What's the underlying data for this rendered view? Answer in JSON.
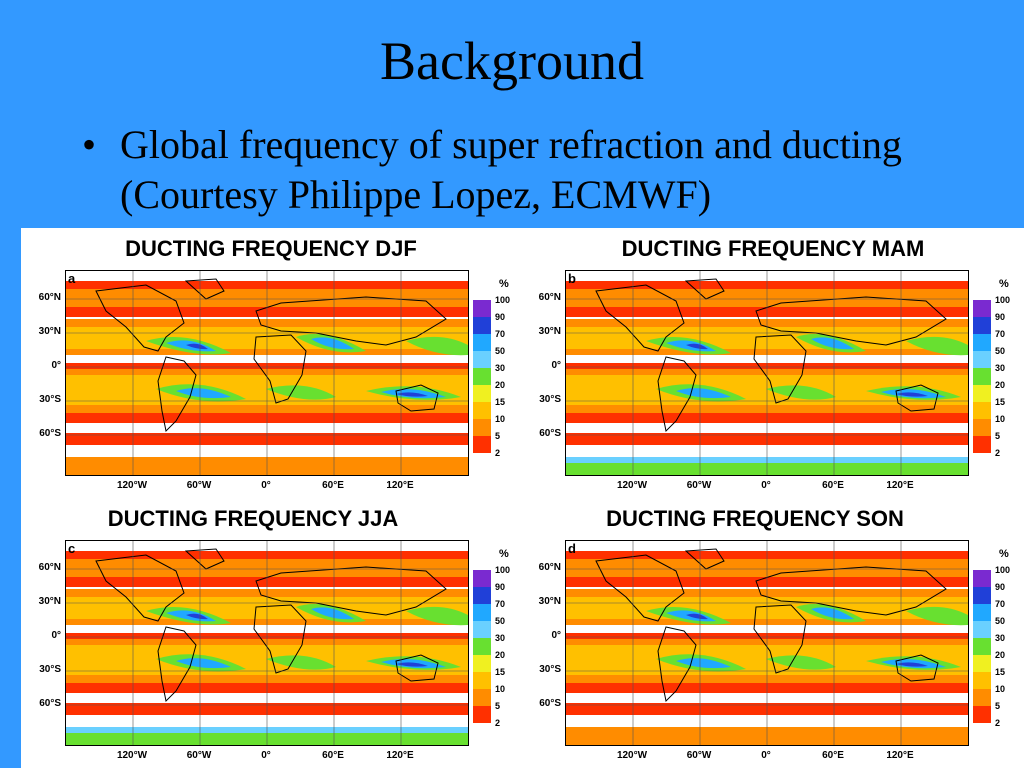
{
  "slide": {
    "title": "Background",
    "bullet_symbol": "•",
    "bullet_text": "Global frequency of super refraction and ducting (Courtesy Philippe Lopez, ECMWF)"
  },
  "colorbar": {
    "unit": "%",
    "levels": [
      "100",
      "90",
      "70",
      "50",
      "30",
      "20",
      "15",
      "10",
      "5",
      "2"
    ],
    "colors": [
      "#7a2ad0",
      "#2040d8",
      "#20a8ff",
      "#6ad0ff",
      "#68e030",
      "#f0f020",
      "#ffc000",
      "#ff8c00",
      "#ff3000",
      "#ffffff"
    ]
  },
  "axes": {
    "lat_labels": [
      "60°N",
      "30°N",
      "0°",
      "30°S",
      "60°S"
    ],
    "lon_labels": [
      "120°W",
      "60°W",
      "0°",
      "60°E",
      "120°E"
    ]
  },
  "panels": [
    {
      "letter": "a",
      "title": "DUCTING FREQUENCY DJF"
    },
    {
      "letter": "b",
      "title": "DUCTING FREQUENCY MAM"
    },
    {
      "letter": "c",
      "title": "DUCTING FREQUENCY JJA"
    },
    {
      "letter": "d",
      "title": "DUCTING FREQUENCY SON"
    }
  ]
}
